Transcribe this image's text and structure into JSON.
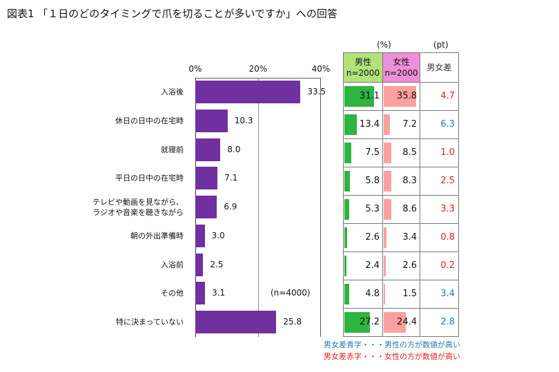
{
  "title": "図表1 「１日のどのタイミングで爪を切ることが多いですか」への回答",
  "table_units": {
    "pct": "(%)",
    "pt": "(pt)"
  },
  "table_headers": {
    "male": "男性",
    "male_n": "n=2000",
    "female": "女性",
    "female_n": "n=2000",
    "diff": "男女差"
  },
  "sample_note": "(n=4000)",
  "legend": {
    "blue": "男女差青字・・・男性の方が数値が高い",
    "red": "男女差赤字・・・女性の方が数値が高い"
  },
  "colors": {
    "bar": "#7030a0",
    "male_bar": "#2db53f",
    "female_bar": "#ffa0a0",
    "blue_text": "#1f78b4",
    "red_text": "#e02020"
  },
  "chart_data": {
    "type": "bar",
    "orientation": "horizontal",
    "xlim": [
      0,
      40
    ],
    "xticks": [
      "0%",
      "20%",
      "40%"
    ],
    "categories": [
      [
        "入浴後"
      ],
      [
        "休日の日中の在宅時"
      ],
      [
        "就寝前"
      ],
      [
        "平日の日中の在宅時"
      ],
      [
        "テレビや動画を見ながら、",
        "ラジオや音楽を聴きながら"
      ],
      [
        "朝の外出準備時"
      ],
      [
        "入浴前"
      ],
      [
        "その他"
      ],
      [
        "特に決まっていない"
      ]
    ],
    "values": [
      33.5,
      10.3,
      8.0,
      7.1,
      6.9,
      3.0,
      2.5,
      3.1,
      25.8
    ],
    "table": {
      "male": [
        31.1,
        13.4,
        7.5,
        5.8,
        5.3,
        2.6,
        2.4,
        4.8,
        27.2
      ],
      "female": [
        35.8,
        7.2,
        8.5,
        8.3,
        8.6,
        3.4,
        2.6,
        1.5,
        24.4
      ],
      "diff": [
        4.7,
        6.3,
        1.0,
        2.5,
        3.3,
        0.8,
        0.2,
        3.4,
        2.8
      ],
      "diff_higher": [
        "female",
        "male",
        "female",
        "female",
        "female",
        "female",
        "female",
        "male",
        "male"
      ]
    }
  }
}
